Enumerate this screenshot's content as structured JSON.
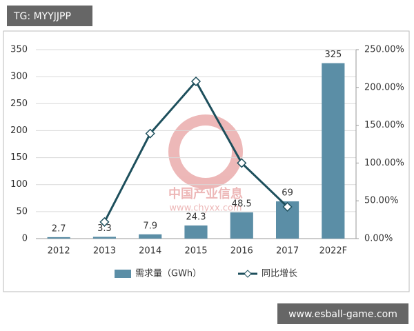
{
  "overlay": {
    "tag": "TG: MYYJJPP",
    "site": "www.esball-game.com",
    "watermark": [
      "中国产业信息",
      "www.chyxx.com"
    ]
  },
  "chart_data": {
    "type": "bar-line",
    "categories": [
      "2012",
      "2013",
      "2014",
      "2015",
      "2016",
      "2017",
      "2022F"
    ],
    "series": [
      {
        "name": "需求量（GWh）",
        "type": "bar",
        "color": "#5b8ea6",
        "values": [
          2.7,
          3.3,
          7.9,
          24.3,
          48.5,
          69,
          325
        ]
      },
      {
        "name": "同比增长",
        "type": "line",
        "axis": "y2",
        "color": "#1d4f5c",
        "values": [
          null,
          22,
          139,
          208,
          100,
          42,
          null
        ]
      }
    ],
    "ylim": [
      0,
      350
    ],
    "yticks": [
      0,
      50,
      100,
      150,
      200,
      250,
      300,
      350
    ],
    "y2lim": [
      0,
      250
    ],
    "y2ticks": [
      {
        "value": 0,
        "label": "0.00%"
      },
      {
        "value": 50,
        "label": "50.00%"
      },
      {
        "value": 100,
        "label": "100.00%"
      },
      {
        "value": 150,
        "label": "150.00%"
      },
      {
        "value": 200,
        "label": "200.00%"
      },
      {
        "value": 250,
        "label": "250.00%"
      }
    ],
    "grid": true
  }
}
